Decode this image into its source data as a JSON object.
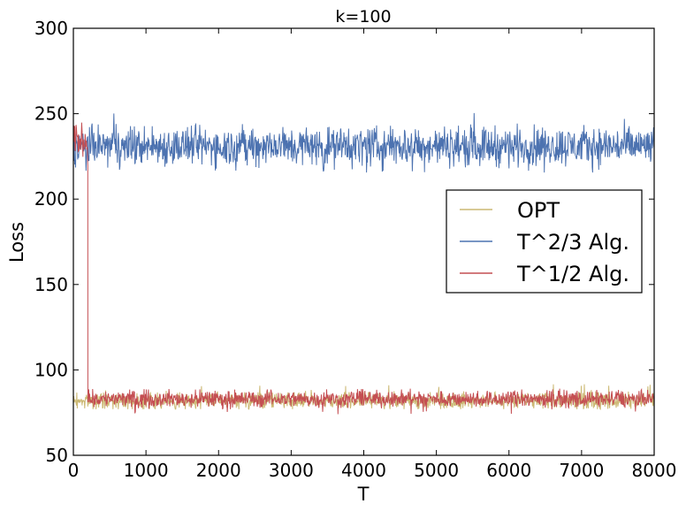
{
  "chart_data": {
    "type": "line",
    "title": "k=100",
    "xlabel": "T",
    "ylabel": "Loss",
    "xlim": [
      0,
      8000
    ],
    "ylim": [
      50,
      300
    ],
    "xticks": [
      0,
      1000,
      2000,
      3000,
      4000,
      5000,
      6000,
      7000,
      8000
    ],
    "yticks": [
      50,
      100,
      150,
      200,
      250,
      300
    ],
    "grid": false,
    "legend_position": "center-right",
    "series": [
      {
        "name": "OPT",
        "color": "#ccb974",
        "mean": 82,
        "noise_range": [
          77,
          92
        ],
        "start_x": 0,
        "end_x": 8000
      },
      {
        "name": "T^2/3 Alg.",
        "color": "#4c72b0",
        "mean": 231,
        "noise_range": [
          215,
          251
        ],
        "start_x": 0,
        "end_x": 8000
      },
      {
        "name": "T^1/2 Alg.",
        "color": "#c44e52",
        "segments": [
          {
            "x": [
              0,
              200
            ],
            "mean": 235,
            "noise_range": [
              218,
              248
            ]
          },
          {
            "x": [
              200,
              8000
            ],
            "mean": 83,
            "noise_range": [
              74,
              89
            ]
          }
        ]
      }
    ]
  }
}
